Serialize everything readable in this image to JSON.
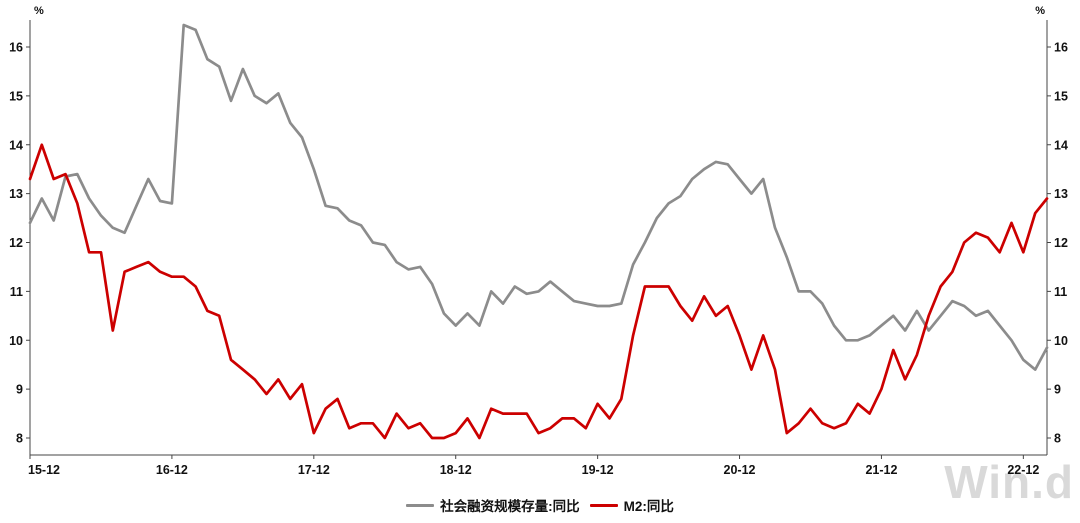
{
  "chart": {
    "watermark": "Win.d"
  },
  "legend": {
    "series1": "社会融资规模存量:同比",
    "series2": "M2:同比"
  },
  "chart_data": {
    "type": "line",
    "title": "",
    "unit": "%",
    "grid": false,
    "legend_position": "bottom",
    "ylim": [
      8,
      16
    ],
    "y_ticks": [
      8,
      9,
      10,
      11,
      12,
      13,
      14,
      15,
      16
    ],
    "y_axis_sides": [
      "left",
      "right"
    ],
    "x_tick_labels": [
      "15-12",
      "16-12",
      "17-12",
      "18-12",
      "19-12",
      "20-12",
      "21-12",
      "22-12"
    ],
    "x_tick_indices": [
      0,
      12,
      24,
      36,
      48,
      60,
      72,
      84
    ],
    "months": [
      "2015-12",
      "2016-01",
      "2016-02",
      "2016-03",
      "2016-04",
      "2016-05",
      "2016-06",
      "2016-07",
      "2016-08",
      "2016-09",
      "2016-10",
      "2016-11",
      "2016-12",
      "2017-01",
      "2017-02",
      "2017-03",
      "2017-04",
      "2017-05",
      "2017-06",
      "2017-07",
      "2017-08",
      "2017-09",
      "2017-10",
      "2017-11",
      "2017-12",
      "2018-01",
      "2018-02",
      "2018-03",
      "2018-04",
      "2018-05",
      "2018-06",
      "2018-07",
      "2018-08",
      "2018-09",
      "2018-10",
      "2018-11",
      "2018-12",
      "2019-01",
      "2019-02",
      "2019-03",
      "2019-04",
      "2019-05",
      "2019-06",
      "2019-07",
      "2019-08",
      "2019-09",
      "2019-10",
      "2019-11",
      "2019-12",
      "2020-01",
      "2020-02",
      "2020-03",
      "2020-04",
      "2020-05",
      "2020-06",
      "2020-07",
      "2020-08",
      "2020-09",
      "2020-10",
      "2020-11",
      "2020-12",
      "2021-01",
      "2021-02",
      "2021-03",
      "2021-04",
      "2021-05",
      "2021-06",
      "2021-07",
      "2021-08",
      "2021-09",
      "2021-10",
      "2021-11",
      "2021-12",
      "2022-01",
      "2022-02",
      "2022-03",
      "2022-04",
      "2022-05",
      "2022-06",
      "2022-07",
      "2022-08",
      "2022-09",
      "2022-10",
      "2022-11",
      "2022-12",
      "2023-01",
      "2023-02"
    ],
    "series": [
      {
        "name": "社会融资规模存量:同比",
        "color": "#8c8c8c",
        "values": [
          12.4,
          12.9,
          12.45,
          13.35,
          13.4,
          12.9,
          12.55,
          12.3,
          12.2,
          12.75,
          13.3,
          12.85,
          12.8,
          16.45,
          16.35,
          15.75,
          15.6,
          14.9,
          15.55,
          15.0,
          14.85,
          15.05,
          14.45,
          14.15,
          13.5,
          12.75,
          12.7,
          12.45,
          12.35,
          12.0,
          11.95,
          11.6,
          11.45,
          11.5,
          11.15,
          10.55,
          10.3,
          10.55,
          10.3,
          11.0,
          10.75,
          11.1,
          10.95,
          11.0,
          11.2,
          11.0,
          10.8,
          10.75,
          10.7,
          10.7,
          10.75,
          11.55,
          12.0,
          12.5,
          12.8,
          12.95,
          13.3,
          13.5,
          13.65,
          13.6,
          13.3,
          13.0,
          13.3,
          12.3,
          11.7,
          11.0,
          11.0,
          10.75,
          10.3,
          10.0,
          10.0,
          10.1,
          10.3,
          10.5,
          10.2,
          10.6,
          10.2,
          10.5,
          10.8,
          10.7,
          10.5,
          10.6,
          10.3,
          10.0,
          9.6,
          9.4,
          9.85
        ]
      },
      {
        "name": "M2:同比",
        "color": "#cc0000",
        "values": [
          13.3,
          14.0,
          13.3,
          13.4,
          12.8,
          11.8,
          11.8,
          10.2,
          11.4,
          11.5,
          11.6,
          11.4,
          11.3,
          11.3,
          11.1,
          10.6,
          10.5,
          9.6,
          9.4,
          9.2,
          8.9,
          9.2,
          8.8,
          9.1,
          8.1,
          8.6,
          8.8,
          8.2,
          8.3,
          8.3,
          8.0,
          8.5,
          8.2,
          8.3,
          8.0,
          8.0,
          8.1,
          8.4,
          8.0,
          8.6,
          8.5,
          8.5,
          8.5,
          8.1,
          8.2,
          8.4,
          8.4,
          8.2,
          8.7,
          8.4,
          8.8,
          10.1,
          11.1,
          11.1,
          11.1,
          10.7,
          10.4,
          10.9,
          10.5,
          10.7,
          10.1,
          9.4,
          10.1,
          9.4,
          8.1,
          8.3,
          8.6,
          8.3,
          8.2,
          8.3,
          8.7,
          8.5,
          9.0,
          9.8,
          9.2,
          9.7,
          10.5,
          11.1,
          11.4,
          12.0,
          12.2,
          12.1,
          11.8,
          12.4,
          11.8,
          12.6,
          12.9
        ]
      }
    ]
  }
}
